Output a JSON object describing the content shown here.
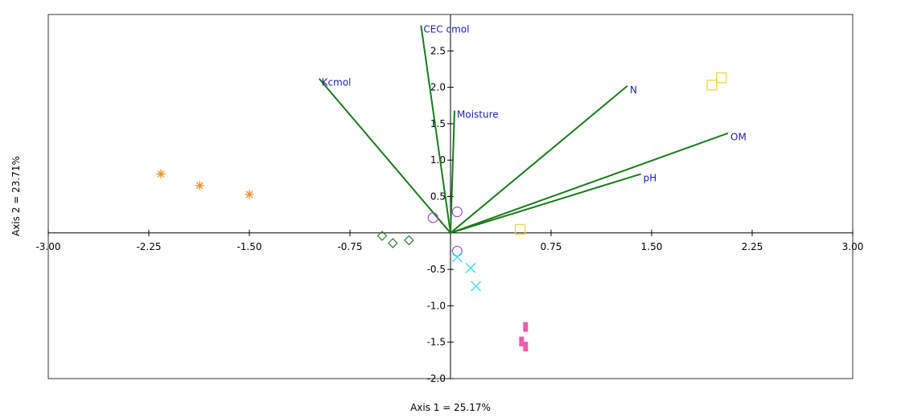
{
  "chart_data": {
    "type": "scatter",
    "subtype": "pca-biplot",
    "xlabel": "Axis 1 = 25.17%",
    "ylabel": "Axis 2 = 23.71%",
    "xlim": [
      -3.0,
      3.0
    ],
    "ylim": [
      -2.0,
      3.0
    ],
    "x_ticks": [
      "-3.00",
      "-2.25",
      "-1.50",
      "-0.75",
      "0.75",
      "1.50",
      "2.25",
      "3.00"
    ],
    "x_tick_values": [
      -3.0,
      -2.25,
      -1.5,
      -0.75,
      0.75,
      1.5,
      2.25,
      3.0
    ],
    "y_ticks": [
      "2.5",
      "2.0",
      "1.5",
      "1.0",
      "0.5",
      "-0.5",
      "-1.0",
      "-1.5",
      "-2.0"
    ],
    "y_tick_values": [
      2.5,
      2.0,
      1.5,
      1.0,
      0.5,
      -0.5,
      -1.0,
      -1.5,
      -2.0
    ],
    "grid": false,
    "colors": {
      "vector": "#1a7a1a",
      "vector_label": "#1c1cb4",
      "asterisk": "#e8902a",
      "diamond": "#2e7d32",
      "circle": "#a64bd6",
      "cross": "#38e0f0",
      "square": "#f2d43c",
      "bar": "#f05ca8"
    },
    "vectors": [
      {
        "label": "CEC cmol",
        "x": -0.22,
        "y": 2.85
      },
      {
        "label": "Kcmol",
        "x": -0.98,
        "y": 2.12
      },
      {
        "label": "Moisture",
        "x": 0.03,
        "y": 1.68
      },
      {
        "label": "N",
        "x": 1.32,
        "y": 2.02
      },
      {
        "label": "OM",
        "x": 2.07,
        "y": 1.37
      },
      {
        "label": "pH",
        "x": 1.42,
        "y": 0.81
      }
    ],
    "series": [
      {
        "marker": "asterisk",
        "points": [
          [
            -2.16,
            0.81
          ],
          [
            -1.87,
            0.65
          ],
          [
            -1.5,
            0.53
          ]
        ]
      },
      {
        "marker": "diamond",
        "points": [
          [
            -0.51,
            -0.04
          ],
          [
            -0.43,
            -0.14
          ],
          [
            -0.31,
            -0.1
          ]
        ]
      },
      {
        "marker": "circle",
        "points": [
          [
            -0.13,
            0.21
          ],
          [
            0.05,
            0.29
          ],
          [
            0.05,
            -0.25
          ]
        ]
      },
      {
        "marker": "cross",
        "points": [
          [
            0.05,
            -0.33
          ],
          [
            0.15,
            -0.48
          ],
          [
            0.19,
            -0.73
          ]
        ]
      },
      {
        "marker": "square",
        "points": [
          [
            1.95,
            2.03
          ],
          [
            2.02,
            2.13
          ],
          [
            0.52,
            0.05
          ]
        ]
      },
      {
        "marker": "bar",
        "points": [
          [
            0.56,
            -1.29
          ],
          [
            0.53,
            -1.49
          ],
          [
            0.56,
            -1.56
          ]
        ]
      }
    ]
  }
}
